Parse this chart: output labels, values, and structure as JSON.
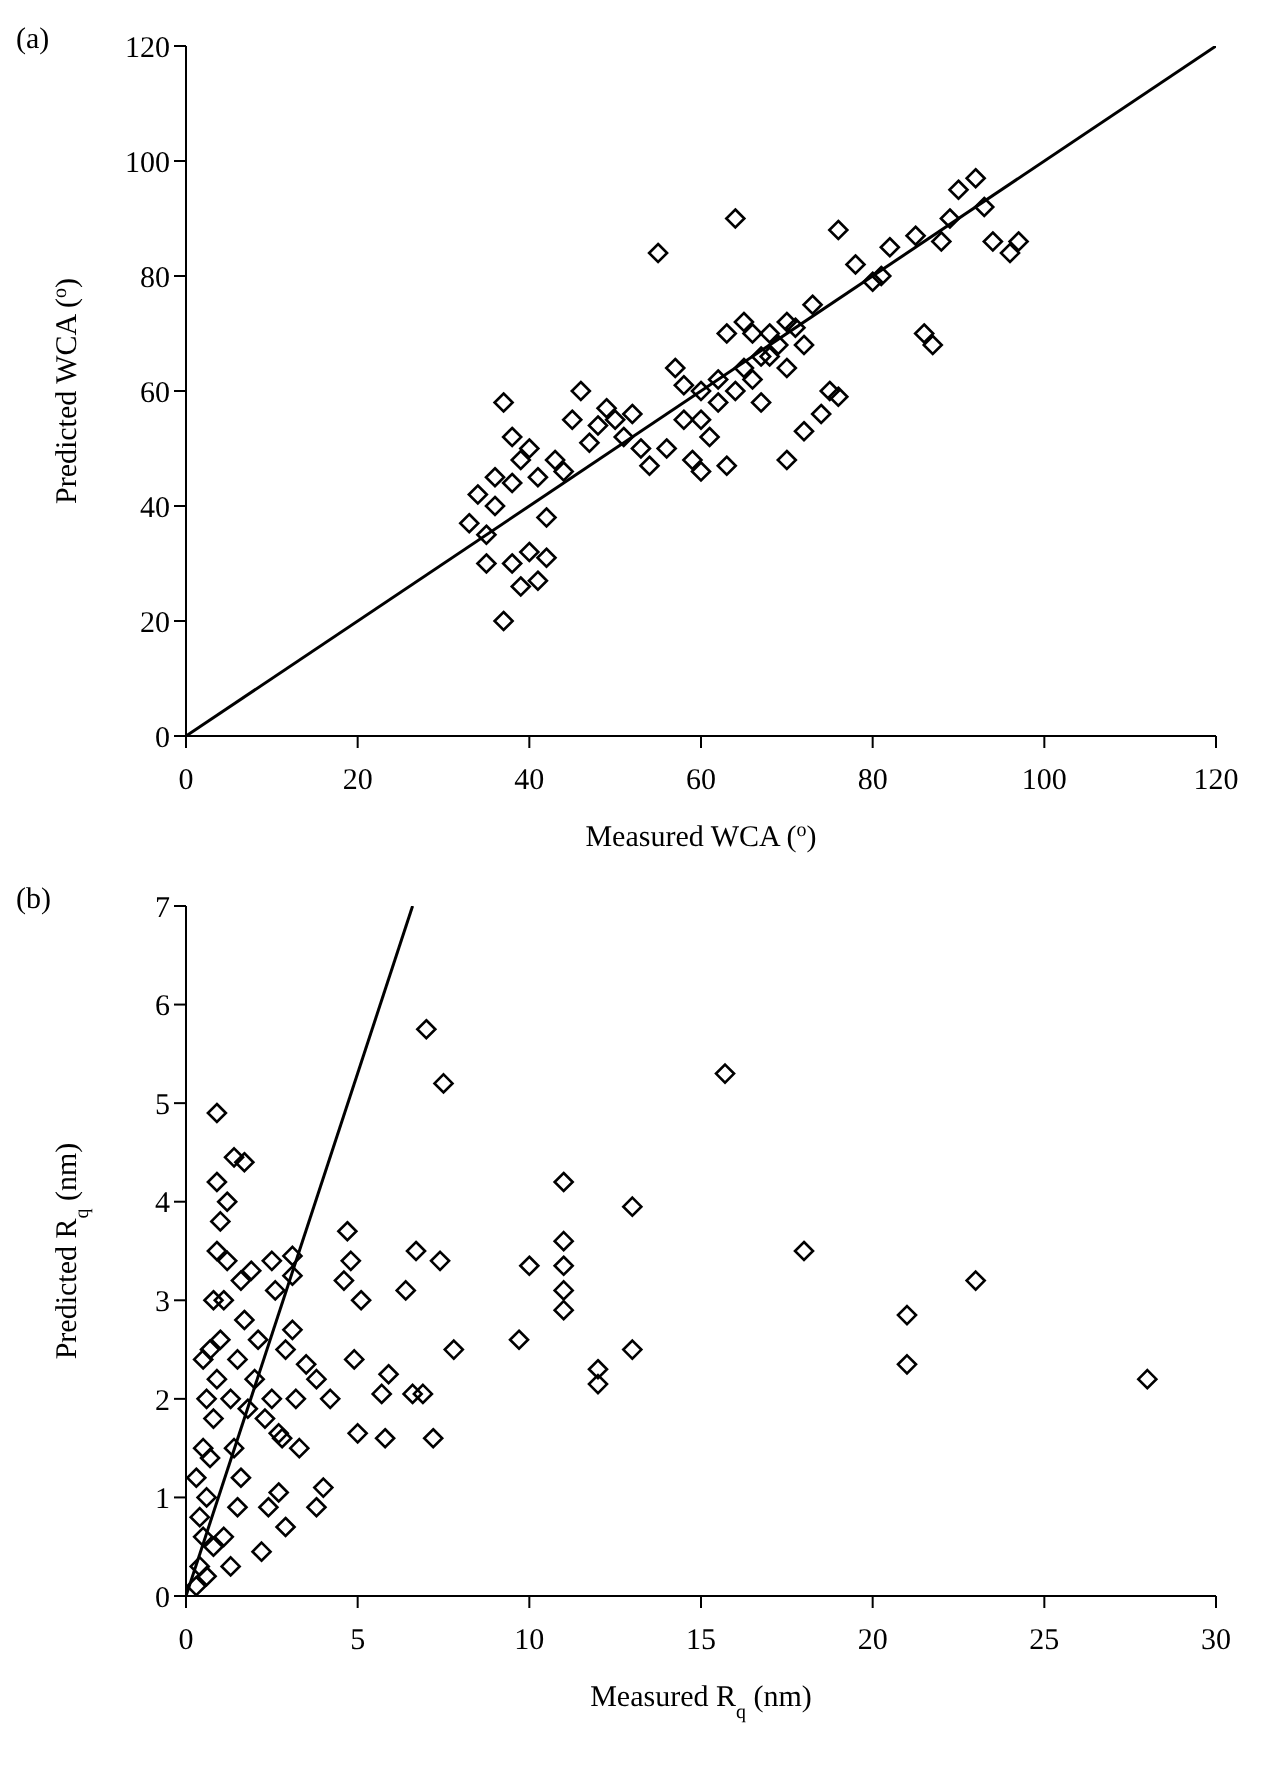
{
  "chart_data": [
    {
      "type": "scatter",
      "title": "(a)",
      "xlabel": "Measured WCA ($^{o}$)",
      "ylabel": "Predicted WCA ($^{o}$)",
      "xlim": [
        0,
        120
      ],
      "ylim": [
        0,
        120
      ],
      "xticks": [
        0,
        20,
        40,
        60,
        80,
        100,
        120
      ],
      "yticks": [
        0,
        20,
        40,
        60,
        80,
        100,
        120
      ],
      "marker": "diamond",
      "series": [
        {
          "color": "#000000",
          "x": [
            37,
            39,
            41,
            42,
            40,
            38,
            35,
            33,
            34,
            36,
            37,
            38,
            40,
            43,
            45,
            46,
            48,
            50,
            52,
            54,
            55,
            56,
            58,
            60,
            62,
            63,
            64,
            60,
            65,
            66,
            68,
            70,
            72,
            70,
            72,
            74,
            75,
            76,
            78,
            81,
            82,
            85,
            86,
            87,
            88,
            89,
            90,
            92,
            93,
            94,
            96,
            97,
            62,
            64,
            66,
            67,
            68,
            69,
            71,
            60,
            58,
            57,
            65,
            63,
            61,
            59,
            76,
            80,
            35,
            36,
            38,
            39,
            41,
            42,
            44,
            47,
            49,
            51,
            53,
            67,
            70,
            73
          ],
          "values": [
            20,
            26,
            27,
            31,
            32,
            30,
            30,
            37,
            42,
            45,
            58,
            52,
            50,
            48,
            55,
            60,
            54,
            55,
            56,
            47,
            84,
            50,
            55,
            60,
            62,
            47,
            90,
            46,
            64,
            70,
            66,
            72,
            68,
            48,
            53,
            56,
            60,
            88,
            82,
            80,
            85,
            87,
            70,
            68,
            86,
            90,
            95,
            97,
            92,
            86,
            84,
            86,
            58,
            60,
            62,
            66,
            70,
            68,
            71,
            55,
            61,
            64,
            72,
            70,
            52,
            48,
            59,
            79,
            35,
            40,
            44,
            48,
            45,
            38,
            46,
            51,
            57,
            52,
            50,
            58,
            64,
            75
          ]
        },
        {
          "type": "line",
          "color": "#000000",
          "marker": "none",
          "x": [
            0,
            120
          ],
          "values": [
            0,
            120
          ]
        }
      ]
    },
    {
      "type": "scatter",
      "title": "(b)",
      "xlabel": "Measured R$_{q}$ (nm)",
      "ylabel": "Predicted R$_{q}$ (nm)",
      "xlim": [
        0,
        30
      ],
      "ylim": [
        0,
        7
      ],
      "xticks": [
        0,
        5,
        10,
        15,
        20,
        25,
        30
      ],
      "yticks": [
        0,
        1,
        2,
        3,
        4,
        5,
        6,
        7
      ],
      "marker": "diamond",
      "series": [
        {
          "color": "#000000",
          "x": [
            7.0,
            7.5,
            15.7,
            0.9,
            1.4,
            1.7,
            0.9,
            11.0,
            13.0,
            4.7,
            4.8,
            4.6,
            5.1,
            6.7,
            7.4,
            6.4,
            10.0,
            11.0,
            11.0,
            11.0,
            11.0,
            18.0,
            23.0,
            21.0,
            21.0,
            28.0,
            9.7,
            7.8,
            12.0,
            12.0,
            13.0,
            4.9,
            5.9,
            5.7,
            6.6,
            6.9,
            5.0,
            5.8,
            7.2,
            4.0,
            3.8,
            2.7,
            2.4,
            2.9,
            2.2,
            2.5,
            3.1,
            3.1,
            2.6,
            3.1,
            3.5,
            3.8,
            4.2,
            3.3,
            2.7,
            0.3,
            0.4,
            0.5,
            0.6,
            0.7,
            0.8,
            0.9,
            1.0,
            1.1,
            1.2,
            0.5,
            0.6,
            0.7,
            0.8,
            0.9,
            1.0,
            1.2,
            1.3,
            1.4,
            1.5,
            1.6,
            1.7,
            1.8,
            2.0,
            2.1,
            2.3,
            0.4,
            0.5,
            0.6,
            1.1,
            1.3,
            1.5,
            0.8,
            2.5,
            2.8,
            3.2,
            2.9,
            1.9,
            1.6,
            0.3
          ],
          "values": [
            5.75,
            5.2,
            5.3,
            4.9,
            4.45,
            4.4,
            4.2,
            4.2,
            3.95,
            3.7,
            3.4,
            3.2,
            3.0,
            3.5,
            3.4,
            3.1,
            3.35,
            3.6,
            3.35,
            3.1,
            2.9,
            3.5,
            3.2,
            2.85,
            2.35,
            2.2,
            2.6,
            2.5,
            2.3,
            2.15,
            2.5,
            2.4,
            2.25,
            2.05,
            2.05,
            2.05,
            1.65,
            1.6,
            1.6,
            1.1,
            0.9,
            1.05,
            0.9,
            0.7,
            0.45,
            3.4,
            3.45,
            3.25,
            3.1,
            2.7,
            2.35,
            2.2,
            2.0,
            1.5,
            1.65,
            0.1,
            0.3,
            0.6,
            1.0,
            1.4,
            1.8,
            2.2,
            2.6,
            3.0,
            3.4,
            1.5,
            2.0,
            2.5,
            3.0,
            3.5,
            3.8,
            4.0,
            2.0,
            1.5,
            2.4,
            1.2,
            2.8,
            1.9,
            2.2,
            2.6,
            1.8,
            0.8,
            2.4,
            0.2,
            0.6,
            0.3,
            0.9,
            0.5,
            2.0,
            1.6,
            2.0,
            2.5,
            3.3,
            3.2,
            1.2
          ]
        },
        {
          "type": "line",
          "color": "#000000",
          "marker": "none",
          "x": [
            0,
            6.6
          ],
          "values": [
            0,
            7
          ]
        }
      ]
    }
  ]
}
